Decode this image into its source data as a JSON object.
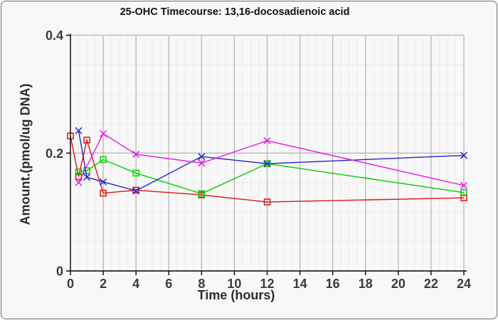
{
  "window": {
    "background": "#f8f8f8",
    "border_color": "#6e6e6e"
  },
  "chart_data": {
    "type": "line",
    "title": "25-OHC Timecourse: 13,16-docosadienoic acid",
    "xlabel": "Time (hours)",
    "ylabel": "Amount.(pmol/ug DNA)",
    "xlim": [
      0,
      24
    ],
    "ylim": [
      0,
      0.4
    ],
    "x_ticks": [
      0,
      2,
      4,
      6,
      8,
      10,
      12,
      14,
      16,
      18,
      20,
      22,
      24
    ],
    "x_tick_labels": [
      "0",
      "2",
      "4",
      "6",
      "8",
      "10",
      "12",
      "14",
      "16",
      "18",
      "20",
      "22",
      "24"
    ],
    "y_ticks": [
      0,
      0.2,
      0.4
    ],
    "y_tick_labels": [
      "0",
      "0.2",
      "0.4"
    ],
    "x_minor_step": 0.5,
    "y_minor_step": 0.05,
    "grid": true,
    "legend": false,
    "grid_colors": {
      "major": "#b2b2b2",
      "minor": "#ececec",
      "axis": "#000000"
    },
    "series": [
      {
        "name": "red-squares",
        "color": "#e41111",
        "marker": "square",
        "x": [
          0,
          0.5,
          1,
          2,
          4,
          8,
          12,
          24
        ],
        "y": [
          0.229,
          0.16,
          0.222,
          0.132,
          0.137,
          0.129,
          0.117,
          0.124
        ]
      },
      {
        "name": "green-squares",
        "color": "#00cc00",
        "marker": "square",
        "x": [
          0.5,
          1,
          2,
          4,
          8,
          12,
          24
        ],
        "y": [
          0.168,
          0.17,
          0.189,
          0.166,
          0.131,
          0.182,
          0.133
        ]
      },
      {
        "name": "blue-x",
        "color": "#2222cc",
        "marker": "x",
        "x": [
          0.5,
          1,
          2,
          4,
          8,
          12,
          24
        ],
        "y": [
          0.238,
          0.159,
          0.151,
          0.136,
          0.194,
          0.182,
          0.196
        ]
      },
      {
        "name": "magenta-x",
        "color": "#e619e6",
        "marker": "x",
        "x": [
          0.5,
          2,
          4,
          8,
          12,
          24
        ],
        "y": [
          0.15,
          0.233,
          0.198,
          0.183,
          0.221,
          0.145
        ]
      }
    ]
  }
}
